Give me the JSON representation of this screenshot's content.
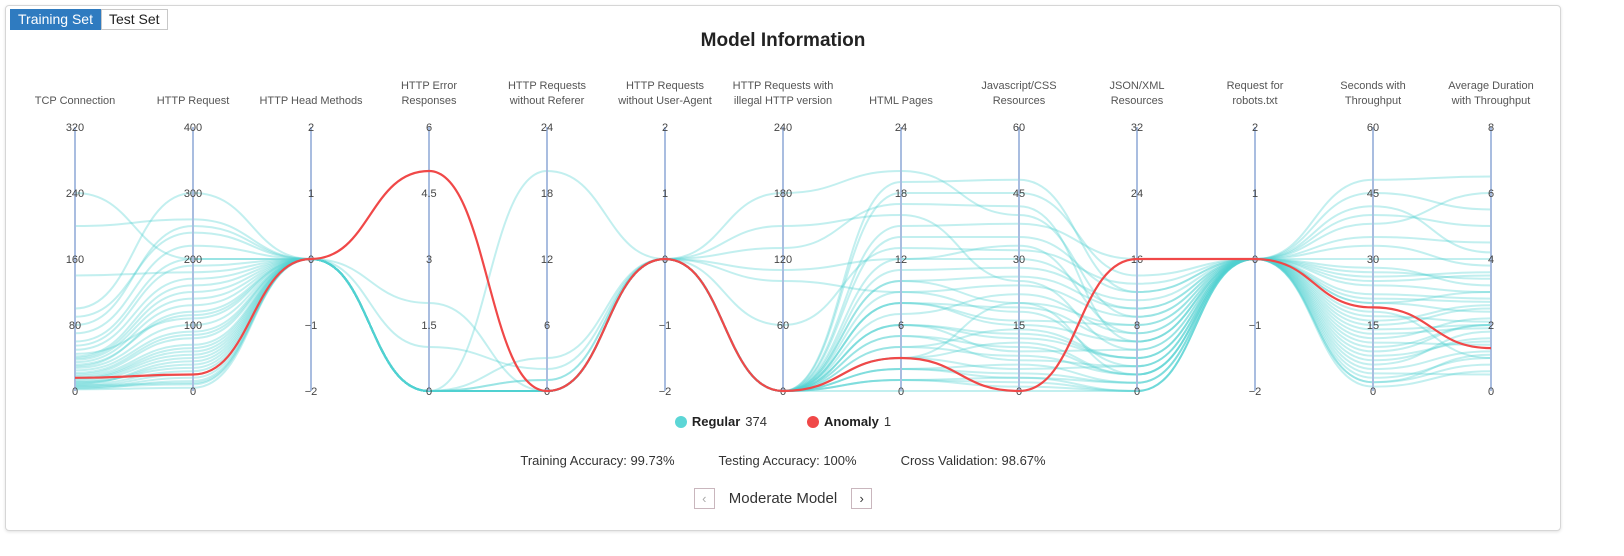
{
  "tabs": [
    {
      "label": "Training Set",
      "active": true
    },
    {
      "label": "Test Set",
      "active": false
    }
  ],
  "chart_data": {
    "type": "parallel-coordinates",
    "title": "Model Information",
    "axes": [
      {
        "title": [
          "TCP Connection"
        ],
        "min": 0,
        "max": 320,
        "ticks": [
          "0",
          "80",
          "160",
          "240",
          "320"
        ]
      },
      {
        "title": [
          "HTTP Request"
        ],
        "min": 0,
        "max": 400,
        "ticks": [
          "0",
          "100",
          "200",
          "300",
          "400"
        ]
      },
      {
        "title": [
          "HTTP Head Methods"
        ],
        "min": -2,
        "max": 2,
        "ticks": [
          "−2",
          "−1",
          "0",
          "1",
          "2"
        ]
      },
      {
        "title": [
          "HTTP Error",
          "Responses"
        ],
        "min": 0,
        "max": 6,
        "ticks": [
          "0",
          "1.5",
          "3",
          "4.5",
          "6"
        ]
      },
      {
        "title": [
          "HTTP Requests",
          "without Referer"
        ],
        "min": 0,
        "max": 24,
        "ticks": [
          "0",
          "6",
          "12",
          "18",
          "24"
        ]
      },
      {
        "title": [
          "HTTP Requests",
          "without User-Agent"
        ],
        "min": -2,
        "max": 2,
        "ticks": [
          "−2",
          "−1",
          "0",
          "1",
          "2"
        ]
      },
      {
        "title": [
          "HTTP Requests with",
          "illegal HTTP version"
        ],
        "min": 0,
        "max": 240,
        "ticks": [
          "0",
          "60",
          "120",
          "180",
          "240"
        ]
      },
      {
        "title": [
          "HTML Pages"
        ],
        "min": 0,
        "max": 24,
        "ticks": [
          "0",
          "6",
          "12",
          "18",
          "24"
        ]
      },
      {
        "title": [
          "Javascript/CSS",
          "Resources"
        ],
        "min": 0,
        "max": 60,
        "ticks": [
          "0",
          "15",
          "30",
          "45",
          "60"
        ]
      },
      {
        "title": [
          "JSON/XML",
          "Resources"
        ],
        "min": 0,
        "max": 32,
        "ticks": [
          "0",
          "8",
          "16",
          "24",
          "32"
        ]
      },
      {
        "title": [
          "Request for",
          "robots.txt"
        ],
        "min": -2,
        "max": 2,
        "ticks": [
          "−2",
          "−1",
          "0",
          "1",
          "2"
        ]
      },
      {
        "title": [
          "Seconds with",
          "Throughput"
        ],
        "min": 0,
        "max": 60,
        "ticks": [
          "0",
          "15",
          "30",
          "45",
          "60"
        ]
      },
      {
        "title": [
          "Average Duration",
          "with Throughput"
        ],
        "min": 0,
        "max": 8,
        "ticks": [
          "0",
          "2",
          "4",
          "6",
          "8"
        ]
      }
    ],
    "series": [
      {
        "name": "Regular",
        "count": "374",
        "color": "#4fd1d1",
        "lines": [
          [
            5,
            10,
            0,
            0,
            0,
            0,
            0,
            2,
            3,
            1,
            0,
            5,
            1.2
          ],
          [
            10,
            40,
            0,
            0,
            0,
            0,
            0,
            4,
            8,
            2,
            0,
            10,
            2
          ],
          [
            20,
            80,
            0,
            0,
            0,
            0,
            0,
            6,
            12,
            4,
            0,
            15,
            2.5
          ],
          [
            30,
            120,
            0,
            0,
            1,
            0,
            0,
            8,
            15,
            6,
            0,
            20,
            3
          ],
          [
            40,
            150,
            0,
            0,
            0,
            0,
            0,
            10,
            20,
            8,
            0,
            25,
            3.5
          ],
          [
            2,
            5,
            0,
            0,
            0,
            0,
            0,
            1,
            1,
            0,
            0,
            2,
            0.8
          ],
          [
            15,
            60,
            0,
            0,
            0,
            0,
            0,
            3,
            5,
            3,
            0,
            8,
            1.5
          ],
          [
            60,
            200,
            0,
            0,
            0,
            0,
            0,
            12,
            30,
            10,
            0,
            30,
            4
          ],
          [
            80,
            250,
            0,
            2,
            0,
            0,
            0,
            14,
            35,
            12,
            0,
            35,
            4.5
          ],
          [
            100,
            300,
            0,
            1,
            2,
            0,
            0,
            18,
            45,
            14,
            0,
            45,
            5.5
          ],
          [
            25,
            90,
            0,
            0,
            0,
            0,
            150,
            16,
            25,
            5,
            0,
            12,
            2.2
          ],
          [
            45,
            110,
            0,
            0,
            0,
            0,
            180,
            20,
            40,
            9,
            0,
            28,
            3.2
          ],
          [
            8,
            30,
            0,
            0,
            20,
            0,
            100,
            9,
            18,
            3,
            0,
            18,
            1
          ],
          [
            12,
            50,
            0,
            0,
            0,
            0,
            0,
            5,
            10,
            2,
            0,
            6,
            1.8
          ],
          [
            35,
            130,
            0,
            0,
            3,
            0,
            0,
            7,
            22,
            7,
            0,
            22,
            2.8
          ],
          [
            50,
            170,
            0,
            0,
            0,
            0,
            0,
            11,
            28,
            11,
            0,
            33,
            3.8
          ],
          [
            70,
            220,
            0,
            0,
            0,
            0,
            60,
            13,
            32,
            13,
            0,
            40,
            5
          ],
          [
            18,
            70,
            0,
            0,
            0,
            0,
            0,
            2,
            6,
            1,
            0,
            4,
            0.5
          ],
          [
            28,
            100,
            0,
            0,
            0,
            0,
            0,
            4,
            14,
            4,
            0,
            14,
            2
          ],
          [
            4,
            20,
            0,
            0,
            0,
            0,
            0,
            1,
            3,
            0,
            0,
            3,
            1
          ],
          [
            140,
            180,
            0,
            0,
            0,
            0,
            0,
            15,
            38,
            16,
            0,
            38,
            6
          ],
          [
            200,
            260,
            0,
            0,
            0,
            0,
            130,
            17,
            42,
            6,
            0,
            42,
            4.2
          ],
          [
            9,
            45,
            0,
            0,
            0,
            0,
            0,
            6,
            9,
            5,
            0,
            16,
            2.6
          ],
          [
            22,
            85,
            0,
            0,
            0,
            0,
            0,
            8,
            16,
            8,
            0,
            24,
            3
          ],
          [
            38,
            140,
            0,
            0,
            0,
            0,
            0,
            3,
            20,
            2,
            0,
            11,
            1.4
          ],
          [
            55,
            190,
            0,
            0,
            1,
            0,
            0,
            10,
            26,
            10,
            0,
            27,
            3.4
          ],
          [
            3,
            15,
            0,
            0,
            0,
            0,
            0,
            0,
            0,
            0,
            0,
            1,
            0.6
          ],
          [
            6,
            25,
            0,
            0,
            0,
            0,
            0,
            2,
            4,
            1,
            0,
            7,
            1.6
          ],
          [
            14,
            55,
            0,
            0,
            0,
            0,
            0,
            5,
            7,
            3,
            0,
            9,
            2
          ],
          [
            90,
            240,
            0,
            0,
            0,
            0,
            0,
            19,
            48,
            12,
            0,
            48,
            6.5
          ],
          [
            32,
            115,
            0,
            0,
            0,
            0,
            110,
            12,
            33,
            7,
            0,
            20,
            2.4
          ],
          [
            11,
            35,
            0,
            0,
            0,
            0,
            0,
            3,
            11,
            2,
            0,
            13,
            1.9
          ],
          [
            240,
            200,
            0,
            0,
            0,
            0,
            0,
            9,
            24,
            9,
            0,
            26,
            3.6
          ],
          [
            16,
            65,
            0,
            0,
            0,
            0,
            0,
            6,
            13,
            4,
            0,
            17,
            2.1
          ],
          [
            42,
            160,
            0,
            0,
            0,
            0,
            0,
            8,
            19,
            6,
            0,
            21,
            2.7
          ],
          [
            7,
            12,
            0,
            0,
            0,
            0,
            0,
            1,
            2,
            0,
            0,
            2,
            1.1
          ]
        ]
      },
      {
        "name": "Anomaly",
        "count": "1",
        "color": "#f04848",
        "lines": [
          [
            16,
            25,
            0,
            5,
            0,
            0,
            0,
            3,
            0,
            16,
            0,
            19,
            1.3
          ]
        ]
      }
    ],
    "legend": "bottom"
  },
  "stats": {
    "training": "Training Accuracy: 99.73%",
    "testing": "Testing Accuracy: 100%",
    "cv": "Cross Validation: 98.67%"
  },
  "nav": {
    "prev_icon": "chevron-left-icon",
    "label": "Moderate Model",
    "next_icon": "chevron-right-icon",
    "prev": "‹",
    "next": "›"
  }
}
